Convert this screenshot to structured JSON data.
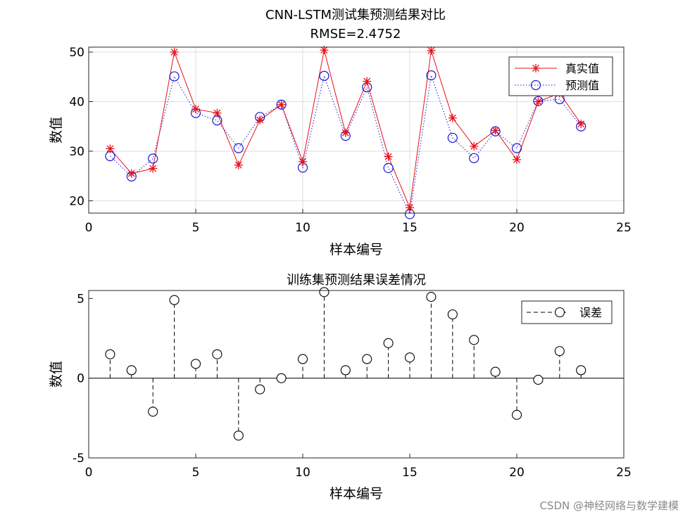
{
  "chart_data": [
    {
      "type": "line",
      "title": "CNN-LSTM测试集预测结果对比",
      "subtitle": "RMSE=2.4752",
      "xlabel": "样本编号",
      "ylabel": "数值",
      "xlim": [
        0,
        25
      ],
      "ylim": [
        17.5,
        51
      ],
      "xticks": [
        0,
        5,
        10,
        15,
        20,
        25
      ],
      "yticks": [
        20,
        30,
        40,
        50
      ],
      "grid": true,
      "legend_position": "top-right",
      "x": [
        1,
        2,
        3,
        4,
        5,
        6,
        7,
        8,
        9,
        10,
        11,
        12,
        13,
        14,
        15,
        16,
        17,
        18,
        19,
        20,
        21,
        22,
        23
      ],
      "series": [
        {
          "name": "真实值",
          "color": "#e8101a",
          "style": "solid line with asterisk markers",
          "values": [
            30.5,
            25.5,
            26.5,
            50,
            38.5,
            37.7,
            27.2,
            36.3,
            39.4,
            27.9,
            50.4,
            33.7,
            44.1,
            28.9,
            18.6,
            50.3,
            36.7,
            31.0,
            34.2,
            28.3,
            40.0,
            41.7,
            35.5
          ]
        },
        {
          "name": "预测值",
          "color": "#1818d8",
          "style": "dotted line with circle markers",
          "values": [
            29.0,
            24.9,
            28.5,
            45.1,
            37.7,
            36.2,
            30.6,
            36.9,
            39.4,
            26.7,
            45.2,
            33.1,
            42.9,
            26.6,
            17.3,
            45.3,
            32.7,
            28.6,
            34.0,
            30.6,
            40.1,
            40.5,
            35.0
          ]
        }
      ]
    },
    {
      "type": "stem",
      "title": "训练集预测结果误差情况",
      "xlabel": "样本编号",
      "ylabel": "数值",
      "xlim": [
        0,
        25
      ],
      "ylim": [
        -5,
        5.5
      ],
      "xticks": [
        0,
        5,
        10,
        15,
        20,
        25
      ],
      "yticks": [
        -5,
        0,
        5
      ],
      "grid": false,
      "legend_position": "top-right",
      "x": [
        1,
        2,
        3,
        4,
        5,
        6,
        7,
        8,
        9,
        10,
        11,
        12,
        13,
        14,
        15,
        16,
        17,
        18,
        19,
        20,
        21,
        22,
        23
      ],
      "series": [
        {
          "name": "误差",
          "color": "#000000",
          "style": "dashed stems with open circle markers",
          "values": [
            1.5,
            0.5,
            -2.1,
            4.9,
            0.9,
            1.5,
            -3.6,
            -0.7,
            0.0,
            1.2,
            5.4,
            0.5,
            1.2,
            2.2,
            1.3,
            5.1,
            4.0,
            2.4,
            0.4,
            -2.3,
            -0.1,
            1.7,
            0.5
          ]
        }
      ]
    }
  ],
  "watermark": "CSDN @神经网络与数学建模"
}
